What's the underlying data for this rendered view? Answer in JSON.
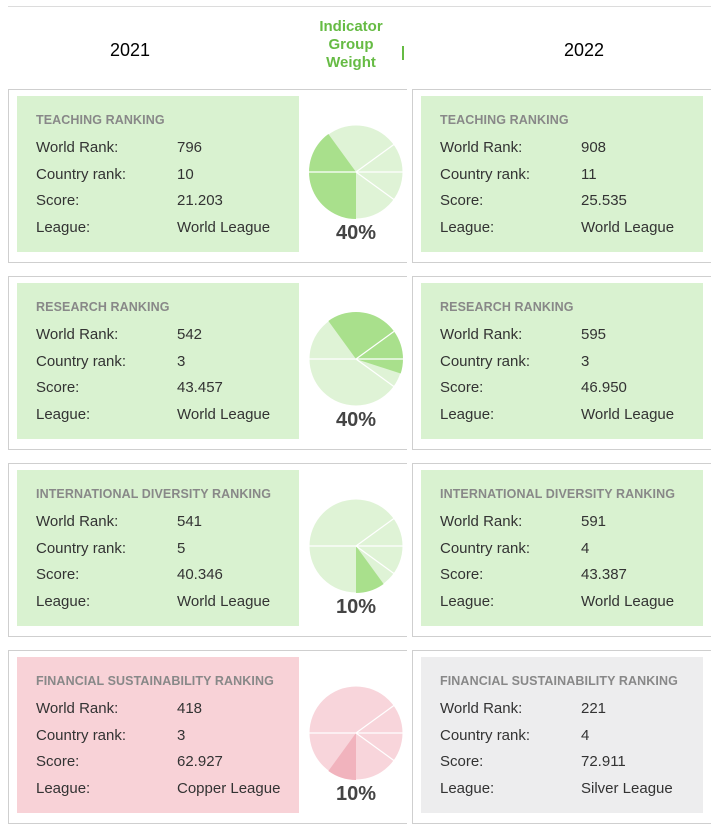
{
  "header": {
    "left_year": "2021",
    "right_year": "2022",
    "weight_title_lines": [
      "Indicator",
      "Group",
      "Weight"
    ]
  },
  "labels": {
    "world_rank": "World Rank:",
    "country_rank": "Country rank:",
    "score": "Score:",
    "league": "League:"
  },
  "colors": {
    "accent_green": "#66bb44",
    "card_green": "#d9f2d0",
    "card_pink": "#f8d2d7",
    "card_grey": "#ededee",
    "pie_green_light": "#dff3d6",
    "pie_green_dark": "#a9e08c",
    "pie_pink_light": "#f8d5db",
    "pie_pink_dark": "#f1b3bd"
  },
  "rows": [
    {
      "title": "TEACHING RANKING",
      "weight": "40%",
      "weight_fraction": 0.4,
      "highlight_start_deg": 90,
      "pie_theme": "green",
      "y2021": {
        "world_rank": "796",
        "country_rank": "10",
        "score": "21.203",
        "league": "World League",
        "theme": "green"
      },
      "y2022": {
        "world_rank": "908",
        "country_rank": "11",
        "score": "25.535",
        "league": "World League",
        "theme": "green"
      }
    },
    {
      "title": "RESEARCH RANKING",
      "weight": "40%",
      "weight_fraction": 0.4,
      "highlight_start_deg": 234,
      "pie_theme": "green",
      "y2021": {
        "world_rank": "542",
        "country_rank": "3",
        "score": "43.457",
        "league": "World League",
        "theme": "green"
      },
      "y2022": {
        "world_rank": "595",
        "country_rank": "3",
        "score": "46.950",
        "league": "World League",
        "theme": "green"
      }
    },
    {
      "title": "INTERNATIONAL DIVERSITY RANKING",
      "weight": "10%",
      "weight_fraction": 0.1,
      "highlight_start_deg": 54,
      "pie_theme": "green",
      "y2021": {
        "world_rank": "541",
        "country_rank": "5",
        "score": "40.346",
        "league": "World League",
        "theme": "green"
      },
      "y2022": {
        "world_rank": "591",
        "country_rank": "4",
        "score": "43.387",
        "league": "World League",
        "theme": "green"
      }
    },
    {
      "title": "FINANCIAL SUSTAINABILITY RANKING",
      "weight": "10%",
      "weight_fraction": 0.1,
      "highlight_start_deg": 90,
      "pie_theme": "pink",
      "y2021": {
        "world_rank": "418",
        "country_rank": "3",
        "score": "62.927",
        "league": "Copper League",
        "theme": "pink"
      },
      "y2022": {
        "world_rank": "221",
        "country_rank": "4",
        "score": "72.911",
        "league": "Silver League",
        "theme": "grey"
      }
    }
  ]
}
